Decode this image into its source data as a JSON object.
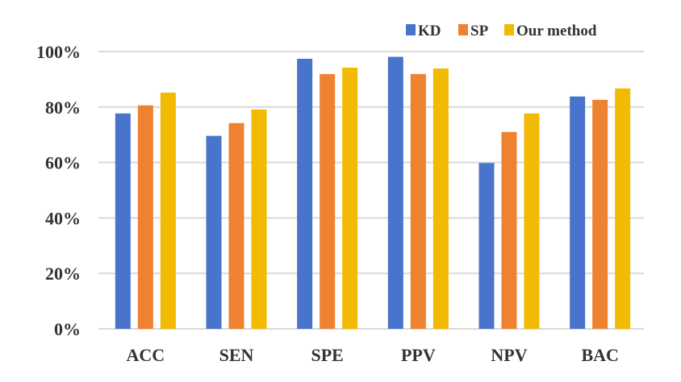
{
  "chart_data": {
    "type": "bar",
    "title": "",
    "xlabel": "",
    "ylabel": "",
    "categories": [
      "ACC",
      "SEN",
      "SPE",
      "PPV",
      "NPV",
      "BAC"
    ],
    "series": [
      {
        "name": "KD",
        "color": "#4874CB",
        "values": [
          77.7,
          69.6,
          97.4,
          98.1,
          59.8,
          83.8
        ]
      },
      {
        "name": "SP",
        "color": "#EE8230",
        "values": [
          80.6,
          74.2,
          91.9,
          91.9,
          71.0,
          82.6
        ]
      },
      {
        "name": "Our method",
        "color": "#F2BA02",
        "values": [
          85.2,
          79.1,
          94.2,
          93.9,
          77.7,
          86.7
        ]
      }
    ],
    "ylim": [
      0,
      100
    ],
    "yticks": [
      "0%",
      "20%",
      "40%",
      "60%",
      "80%",
      "100%"
    ],
    "grid": true,
    "legend_position": "top-right"
  }
}
